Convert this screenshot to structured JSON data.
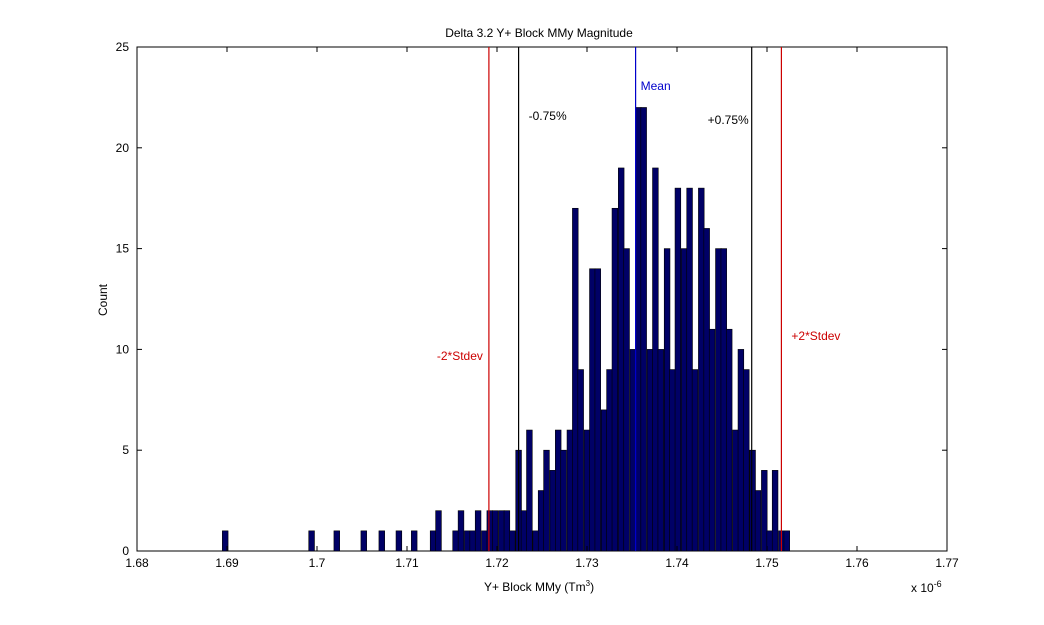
{
  "chart_data": {
    "type": "bar",
    "title": "Delta 3.2 Y+ Block MMy Magnitude",
    "xlabel": "Y+ Block MMy (Tm3)",
    "xlabel_main": "Y+ Block MMy (Tm",
    "xlabel_sup": "3",
    "xlabel_close": ")",
    "ylabel": "Count",
    "x_multiplier": "x 10-6",
    "x_multiplier_base": "x 10",
    "x_multiplier_exp": "-6",
    "xlim": [
      1.68,
      1.77
    ],
    "ylim": [
      0,
      25
    ],
    "xticks": [
      1.68,
      1.69,
      1.7,
      1.71,
      1.72,
      1.73,
      1.74,
      1.75,
      1.76,
      1.77
    ],
    "xtick_labels": [
      "1.68",
      "1.69",
      "1.7",
      "1.71",
      "1.72",
      "1.73",
      "1.74",
      "1.75",
      "1.76",
      "1.77"
    ],
    "yticks": [
      0,
      5,
      10,
      15,
      20,
      25
    ],
    "ytick_labels": [
      "0",
      "5",
      "10",
      "15",
      "20",
      "25"
    ],
    "grid": false,
    "bin_width": 0.000636,
    "bins": [
      {
        "x": 1.6898,
        "count": 1
      },
      {
        "x": 1.6994,
        "count": 1
      },
      {
        "x": 1.7022,
        "count": 1
      },
      {
        "x": 1.7052,
        "count": 1
      },
      {
        "x": 1.7072,
        "count": 1
      },
      {
        "x": 1.7091,
        "count": 1
      },
      {
        "x": 1.7108,
        "count": 1
      },
      {
        "x": 1.7129,
        "count": 1
      },
      {
        "x": 1.7135,
        "count": 2
      },
      {
        "x": 1.7154,
        "count": 1
      },
      {
        "x": 1.716,
        "count": 2
      },
      {
        "x": 1.7167,
        "count": 1
      },
      {
        "x": 1.7173,
        "count": 1
      },
      {
        "x": 1.7179,
        "count": 2
      },
      {
        "x": 1.7186,
        "count": 1
      },
      {
        "x": 1.7192,
        "count": 2
      },
      {
        "x": 1.7198,
        "count": 2
      },
      {
        "x": 1.7205,
        "count": 2
      },
      {
        "x": 1.7211,
        "count": 2
      },
      {
        "x": 1.7217,
        "count": 1
      },
      {
        "x": 1.7224,
        "count": 5
      },
      {
        "x": 1.723,
        "count": 2
      },
      {
        "x": 1.7236,
        "count": 6
      },
      {
        "x": 1.7243,
        "count": 1
      },
      {
        "x": 1.7249,
        "count": 3
      },
      {
        "x": 1.7255,
        "count": 5
      },
      {
        "x": 1.7262,
        "count": 4
      },
      {
        "x": 1.7268,
        "count": 6
      },
      {
        "x": 1.7274,
        "count": 5
      },
      {
        "x": 1.7281,
        "count": 6
      },
      {
        "x": 1.7287,
        "count": 17
      },
      {
        "x": 1.7293,
        "count": 9
      },
      {
        "x": 1.73,
        "count": 6
      },
      {
        "x": 1.7306,
        "count": 14
      },
      {
        "x": 1.7312,
        "count": 14
      },
      {
        "x": 1.7319,
        "count": 7
      },
      {
        "x": 1.7325,
        "count": 9
      },
      {
        "x": 1.7331,
        "count": 17
      },
      {
        "x": 1.7338,
        "count": 19
      },
      {
        "x": 1.7344,
        "count": 15
      },
      {
        "x": 1.7351,
        "count": 10
      },
      {
        "x": 1.7357,
        "count": 22
      },
      {
        "x": 1.7363,
        "count": 22
      },
      {
        "x": 1.737,
        "count": 10
      },
      {
        "x": 1.7376,
        "count": 19
      },
      {
        "x": 1.7382,
        "count": 10
      },
      {
        "x": 1.7389,
        "count": 15
      },
      {
        "x": 1.7395,
        "count": 9
      },
      {
        "x": 1.7401,
        "count": 18
      },
      {
        "x": 1.7408,
        "count": 15
      },
      {
        "x": 1.7414,
        "count": 18
      },
      {
        "x": 1.742,
        "count": 9
      },
      {
        "x": 1.7427,
        "count": 18
      },
      {
        "x": 1.7433,
        "count": 16
      },
      {
        "x": 1.7439,
        "count": 11
      },
      {
        "x": 1.7446,
        "count": 15
      },
      {
        "x": 1.7452,
        "count": 15
      },
      {
        "x": 1.7458,
        "count": 11
      },
      {
        "x": 1.7465,
        "count": 6
      },
      {
        "x": 1.7471,
        "count": 10
      },
      {
        "x": 1.7477,
        "count": 9
      },
      {
        "x": 1.7484,
        "count": 5
      },
      {
        "x": 1.749,
        "count": 3
      },
      {
        "x": 1.7497,
        "count": 4
      },
      {
        "x": 1.7503,
        "count": 1
      },
      {
        "x": 1.7509,
        "count": 4
      },
      {
        "x": 1.7516,
        "count": 1
      },
      {
        "x": 1.7522,
        "count": 1
      }
    ],
    "bar_color": "#000066",
    "bar_edge_color": "#000000",
    "reference_lines": [
      {
        "x": 1.7191,
        "label": "-2*Stdev",
        "color": "#cc0000"
      },
      {
        "x": 1.7224,
        "label": "-0.75%",
        "color": "#000000"
      },
      {
        "x": 1.7354,
        "label": "Mean",
        "color": "#0000cc"
      },
      {
        "x": 1.7483,
        "label": "+0.75%",
        "color": "#000000"
      },
      {
        "x": 1.7516,
        "label": "+2*Stdev",
        "color": "#cc0000"
      }
    ]
  }
}
